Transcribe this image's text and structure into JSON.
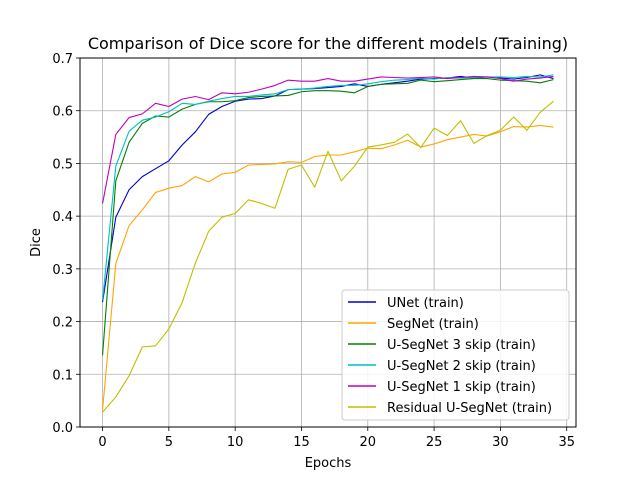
{
  "chart_data": {
    "type": "line",
    "title": "Comparison of Dice score for the different models (Training)",
    "xlabel": "Epochs",
    "ylabel": "Dice",
    "xlim": [
      -1.7,
      35.7
    ],
    "ylim": [
      0.0,
      0.7
    ],
    "xticks": [
      0,
      5,
      10,
      15,
      20,
      25,
      30,
      35
    ],
    "yticks": [
      0.0,
      0.1,
      0.2,
      0.3,
      0.4,
      0.5,
      0.6,
      0.7
    ],
    "xtick_labels": [
      "0",
      "5",
      "10",
      "15",
      "20",
      "25",
      "30",
      "35"
    ],
    "ytick_labels": [
      "0.0",
      "0.1",
      "0.2",
      "0.3",
      "0.4",
      "0.5",
      "0.6",
      "0.7"
    ],
    "grid": true,
    "legend_position": "lower-right",
    "x": [
      0,
      1,
      2,
      3,
      4,
      5,
      6,
      7,
      8,
      9,
      10,
      11,
      12,
      13,
      14,
      15,
      16,
      17,
      18,
      19,
      20,
      21,
      22,
      23,
      24,
      25,
      26,
      27,
      28,
      29,
      30,
      31,
      32,
      33,
      34
    ],
    "series": [
      {
        "name": "UNet (train)",
        "color": "#0000cc",
        "values": [
          0.237,
          0.398,
          0.45,
          0.475,
          0.49,
          0.505,
          0.535,
          0.56,
          0.593,
          0.608,
          0.618,
          0.622,
          0.623,
          0.628,
          0.64,
          0.641,
          0.642,
          0.644,
          0.646,
          0.651,
          0.646,
          0.65,
          0.653,
          0.656,
          0.66,
          0.661,
          0.662,
          0.665,
          0.662,
          0.664,
          0.662,
          0.66,
          0.663,
          0.668,
          0.661
        ]
      },
      {
        "name": "SegNet (train)",
        "color": "#ffa500",
        "values": [
          0.032,
          0.31,
          0.382,
          0.412,
          0.445,
          0.453,
          0.458,
          0.475,
          0.465,
          0.48,
          0.483,
          0.497,
          0.498,
          0.499,
          0.503,
          0.502,
          0.513,
          0.516,
          0.516,
          0.522,
          0.529,
          0.528,
          0.535,
          0.544,
          0.531,
          0.537,
          0.545,
          0.55,
          0.555,
          0.552,
          0.56,
          0.57,
          0.569,
          0.572,
          0.569
        ]
      },
      {
        "name": "U-SegNet 3 skip (train)",
        "color": "#008000",
        "values": [
          0.136,
          0.467,
          0.54,
          0.576,
          0.59,
          0.588,
          0.603,
          0.612,
          0.617,
          0.617,
          0.619,
          0.625,
          0.627,
          0.628,
          0.629,
          0.636,
          0.638,
          0.638,
          0.637,
          0.634,
          0.646,
          0.65,
          0.651,
          0.652,
          0.658,
          0.655,
          0.657,
          0.659,
          0.661,
          0.661,
          0.658,
          0.657,
          0.656,
          0.653,
          0.659
        ]
      },
      {
        "name": "U-SegNet 2 skip (train)",
        "color": "#00bfbf",
        "values": [
          0.24,
          0.495,
          0.561,
          0.582,
          0.588,
          0.598,
          0.614,
          0.612,
          0.618,
          0.623,
          0.627,
          0.627,
          0.63,
          0.632,
          0.64,
          0.641,
          0.643,
          0.646,
          0.648,
          0.648,
          0.651,
          0.655,
          0.658,
          0.659,
          0.662,
          0.66,
          0.663,
          0.662,
          0.663,
          0.664,
          0.664,
          0.663,
          0.665,
          0.664,
          0.668
        ]
      },
      {
        "name": "U-SegNet 1 skip (train)",
        "color": "#bf00bf",
        "values": [
          0.424,
          0.555,
          0.587,
          0.594,
          0.614,
          0.608,
          0.622,
          0.627,
          0.621,
          0.634,
          0.632,
          0.635,
          0.641,
          0.648,
          0.658,
          0.656,
          0.656,
          0.661,
          0.656,
          0.656,
          0.66,
          0.664,
          0.663,
          0.662,
          0.663,
          0.664,
          0.661,
          0.663,
          0.665,
          0.664,
          0.661,
          0.656,
          0.66,
          0.662,
          0.665
        ]
      },
      {
        "name": "Residual U-SegNet (train)",
        "color": "#bfbf00",
        "values": [
          0.028,
          0.057,
          0.097,
          0.152,
          0.154,
          0.186,
          0.236,
          0.311,
          0.371,
          0.398,
          0.405,
          0.431,
          0.424,
          0.415,
          0.489,
          0.497,
          0.455,
          0.523,
          0.467,
          0.495,
          0.531,
          0.535,
          0.54,
          0.556,
          0.53,
          0.567,
          0.553,
          0.581,
          0.538,
          0.553,
          0.563,
          0.588,
          0.563,
          0.597,
          0.618
        ]
      }
    ]
  }
}
